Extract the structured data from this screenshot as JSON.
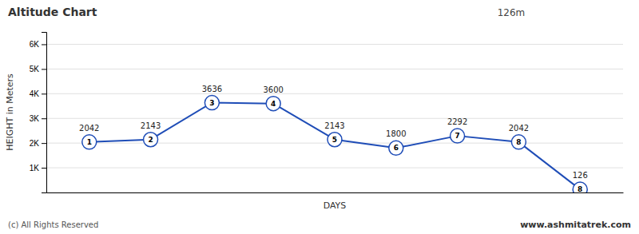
{
  "chart_data": {
    "type": "line",
    "title": "Altitude Chart",
    "x": [
      1,
      2,
      3,
      4,
      5,
      6,
      7,
      8,
      9
    ],
    "values": [
      2042,
      2143,
      3636,
      3600,
      2143,
      1800,
      2292,
      2042,
      126
    ],
    "point_labels": [
      "1",
      "2",
      "3",
      "4",
      "5",
      "6",
      "7",
      "8",
      "8"
    ],
    "color": "#1f4db7",
    "marker": "circle",
    "data_labels": true,
    "xlabel": "DAYS",
    "ylabel": "HEIGHT in Meters",
    "xlim": [
      0.3,
      9.7
    ],
    "ylim": [
      0,
      6500
    ],
    "yticks": [
      {
        "value": 1000,
        "label": "1K"
      },
      {
        "value": 2000,
        "label": "2K"
      },
      {
        "value": 3000,
        "label": "3K"
      },
      {
        "value": 4000,
        "label": "4K"
      },
      {
        "value": 5000,
        "label": "5K"
      },
      {
        "value": 6000,
        "label": "6K"
      }
    ],
    "grid": true,
    "tick_labels": "y",
    "annotations": [
      "126m",
      "(c) All Rights Reserved",
      "www.ashmitatrek.com"
    ]
  }
}
